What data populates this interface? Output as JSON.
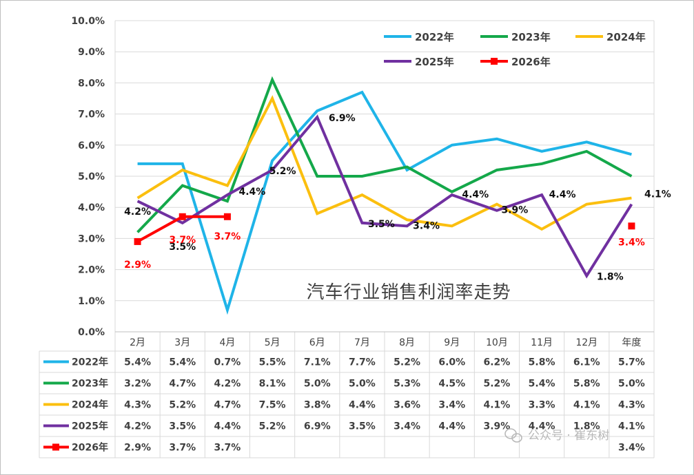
{
  "chart_data": {
    "type": "line",
    "title": "汽车行业销售利润率走势",
    "categories": [
      "2月",
      "3月",
      "4月",
      "5月",
      "6月",
      "7月",
      "8月",
      "9月",
      "10月",
      "11月",
      "12月",
      "年度"
    ],
    "y_ticks": [
      "0.0%",
      "1.0%",
      "2.0%",
      "3.0%",
      "4.0%",
      "5.0%",
      "6.0%",
      "7.0%",
      "8.0%",
      "9.0%",
      "10.0%"
    ],
    "ylim": [
      0,
      10
    ],
    "legend_position": "top-right",
    "series": [
      {
        "name": "2022年",
        "color": "#1fb4e8",
        "marker": "none",
        "values": [
          5.4,
          5.4,
          0.7,
          5.5,
          7.1,
          7.7,
          5.2,
          6.0,
          6.2,
          5.8,
          6.1,
          5.7
        ],
        "table": [
          "5.4%",
          "5.4%",
          "0.7%",
          "5.5%",
          "7.1%",
          "7.7%",
          "5.2%",
          "6.0%",
          "6.2%",
          "5.8%",
          "6.1%",
          "5.7%"
        ]
      },
      {
        "name": "2023年",
        "color": "#14a84a",
        "marker": "none",
        "values": [
          3.2,
          4.7,
          4.2,
          8.1,
          5.0,
          5.0,
          5.3,
          4.5,
          5.2,
          5.4,
          5.8,
          5.0
        ],
        "table": [
          "3.2%",
          "4.7%",
          "4.2%",
          "8.1%",
          "5.0%",
          "5.0%",
          "5.3%",
          "4.5%",
          "5.2%",
          "5.4%",
          "5.8%",
          "5.0%"
        ]
      },
      {
        "name": "2024年",
        "color": "#fbbf0f",
        "marker": "none",
        "values": [
          4.3,
          5.2,
          4.7,
          7.5,
          3.8,
          4.4,
          3.6,
          3.4,
          4.1,
          3.3,
          4.1,
          4.3
        ],
        "table": [
          "4.3%",
          "5.2%",
          "4.7%",
          "7.5%",
          "3.8%",
          "4.4%",
          "3.6%",
          "3.4%",
          "4.1%",
          "3.3%",
          "4.1%",
          "4.3%"
        ]
      },
      {
        "name": "2025年",
        "color": "#7030a0",
        "marker": "none",
        "values": [
          4.2,
          3.5,
          4.4,
          5.2,
          6.9,
          3.5,
          3.4,
          4.4,
          3.9,
          4.4,
          1.8,
          4.1
        ],
        "table": [
          "4.2%",
          "3.5%",
          "4.4%",
          "5.2%",
          "6.9%",
          "3.5%",
          "3.4%",
          "4.4%",
          "3.9%",
          "4.4%",
          "1.8%",
          "4.1%"
        ]
      },
      {
        "name": "2026年",
        "color": "#ff0000",
        "marker": "square",
        "values": [
          2.9,
          3.7,
          3.7,
          null,
          null,
          null,
          null,
          null,
          null,
          null,
          null,
          3.4
        ],
        "table": [
          "2.9%",
          "3.7%",
          "3.7%",
          "",
          "",
          "",
          "",
          "",
          "",
          "",
          "",
          "3.4%"
        ]
      }
    ],
    "annotations": [
      {
        "series": 3,
        "index": 0,
        "text": "4.2%"
      },
      {
        "series": 3,
        "index": 1,
        "text": "3.5%"
      },
      {
        "series": 3,
        "index": 2,
        "text": "4.4%"
      },
      {
        "series": 3,
        "index": 3,
        "text": "5.2%"
      },
      {
        "series": 3,
        "index": 4,
        "text": "6.9%"
      },
      {
        "series": 3,
        "index": 5,
        "text": "3.5%"
      },
      {
        "series": 3,
        "index": 6,
        "text": "3.4%"
      },
      {
        "series": 3,
        "index": 7,
        "text": "4.4%"
      },
      {
        "series": 3,
        "index": 8,
        "text": "3.9%"
      },
      {
        "series": 3,
        "index": 9,
        "text": "4.4%"
      },
      {
        "series": 3,
        "index": 10,
        "text": "1.8%"
      },
      {
        "series": 3,
        "index": 11,
        "text": "4.1%"
      },
      {
        "series": 4,
        "index": 0,
        "text": "2.9%"
      },
      {
        "series": 4,
        "index": 1,
        "text": "3.7%"
      },
      {
        "series": 4,
        "index": 2,
        "text": "3.7%"
      },
      {
        "series": 4,
        "index": 11,
        "text": "3.4%"
      }
    ]
  },
  "watermark": "公众号 · 崔东树"
}
